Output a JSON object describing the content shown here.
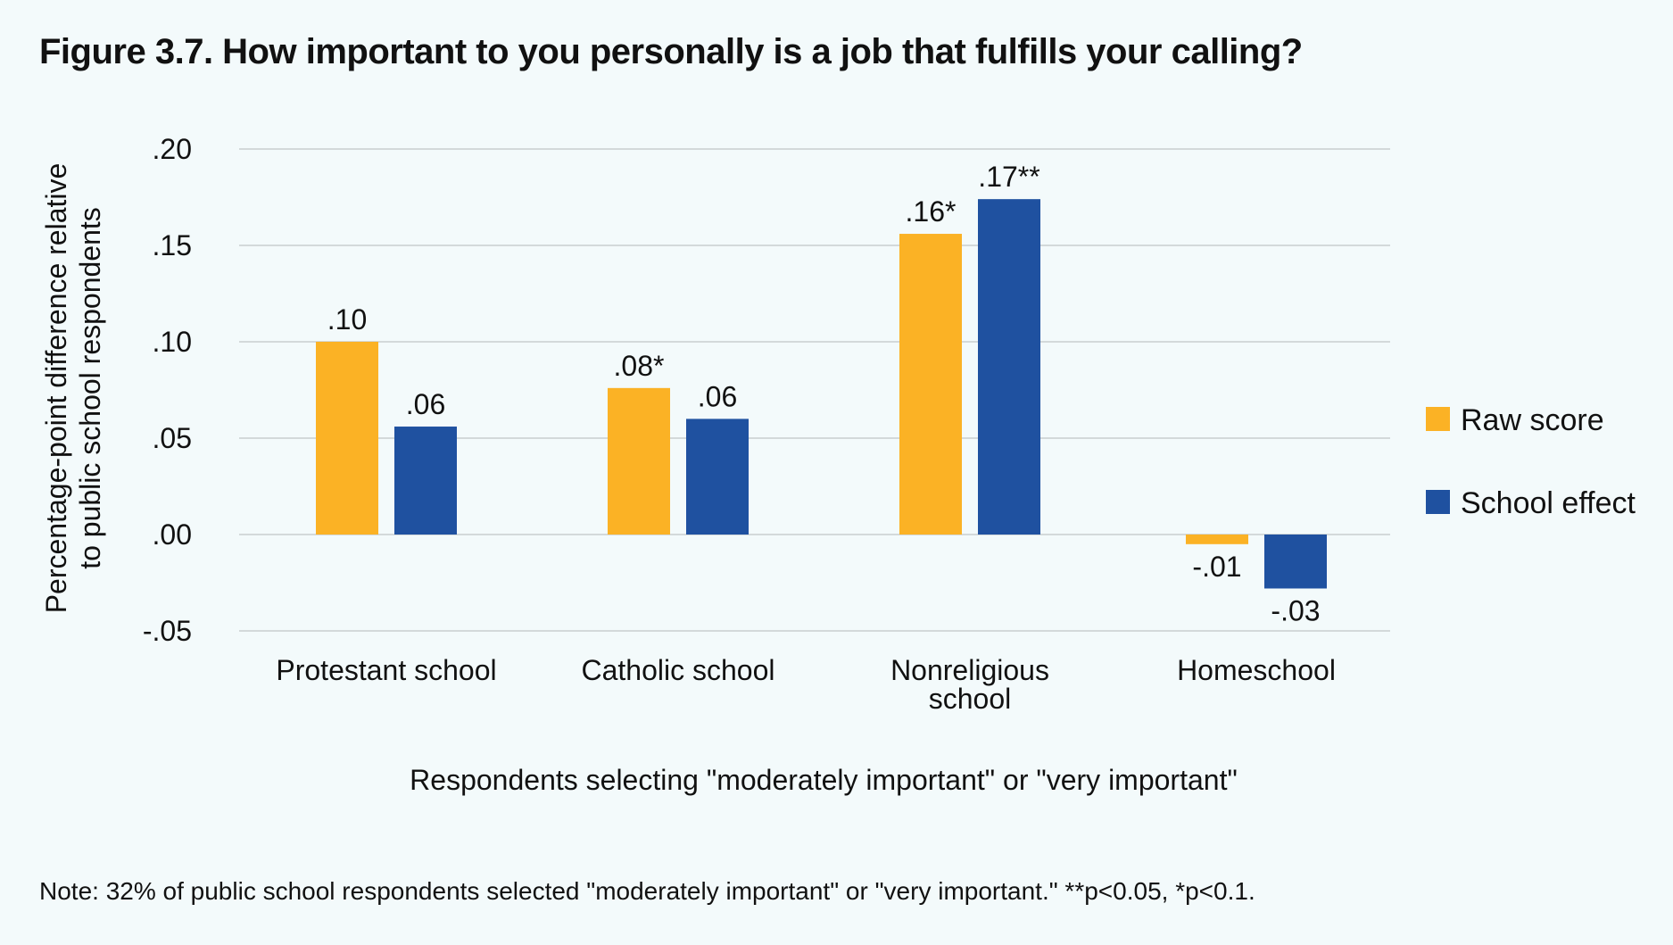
{
  "title": "Figure 3.7. How important to you personally is a job that fulfills your calling?",
  "note": "Note: 32% of public school respondents selected \"moderately important\" or \"very important.\" **p<0.05, *p<0.1.",
  "chart_data": {
    "type": "bar",
    "categories": [
      [
        "Protestant school"
      ],
      [
        "Catholic school"
      ],
      [
        "Nonreligious",
        "school"
      ],
      [
        "Homeschool"
      ]
    ],
    "series": [
      {
        "name": "Raw score",
        "color": "#fbb225",
        "values": [
          0.1,
          0.076,
          0.156,
          -0.005
        ],
        "labels": [
          ".10",
          ".08*",
          ".16*",
          "-.01"
        ]
      },
      {
        "name": "School effect",
        "color": "#1f51a0",
        "values": [
          0.056,
          0.06,
          0.174,
          -0.028
        ],
        "labels": [
          ".06",
          ".06",
          ".17**",
          "-.03"
        ]
      }
    ],
    "y_ticks": [
      {
        "value": 0.2,
        "label": ".20"
      },
      {
        "value": 0.15,
        "label": ".15"
      },
      {
        "value": 0.1,
        "label": ".10"
      },
      {
        "value": 0.05,
        "label": ".05"
      },
      {
        "value": 0.0,
        "label": ".00"
      },
      {
        "value": -0.05,
        "label": "-.05"
      }
    ],
    "ylim": [
      -0.05,
      0.2
    ],
    "ylabel": [
      "Percentage-point difference relative",
      "to public school respondents"
    ],
    "xlabel": "Respondents selecting \"moderately important\" or \"very important\"",
    "legend_position": "right",
    "grid": true,
    "gridline_color": "#d3d9da"
  }
}
